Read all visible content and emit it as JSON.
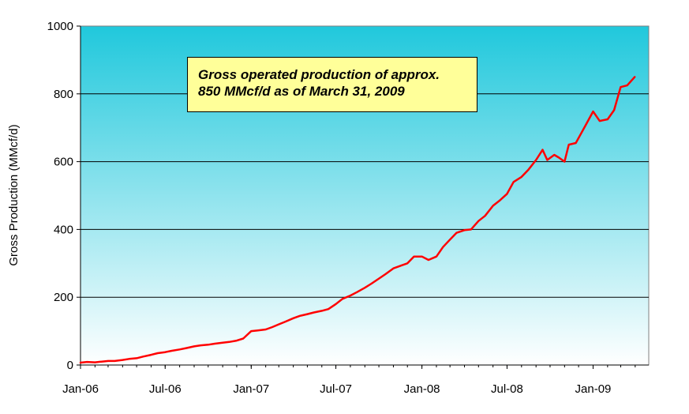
{
  "chart_data": {
    "type": "line",
    "title": "",
    "xlabel": "",
    "ylabel": "Gross Production (MMcf/d)",
    "ylim": [
      0,
      1000
    ],
    "yticks": [
      0,
      200,
      400,
      600,
      800,
      1000
    ],
    "xlim": [
      "2006-01-01",
      "2009-04-30"
    ],
    "xticks": [
      {
        "date": "2006-01-01",
        "label": "Jan-06"
      },
      {
        "date": "2006-07-01",
        "label": "Jul-06"
      },
      {
        "date": "2007-01-01",
        "label": "Jan-07"
      },
      {
        "date": "2007-07-01",
        "label": "Jul-07"
      },
      {
        "date": "2008-01-01",
        "label": "Jan-08"
      },
      {
        "date": "2008-07-01",
        "label": "Jul-08"
      },
      {
        "date": "2009-01-01",
        "label": "Jan-09"
      }
    ],
    "grid": true,
    "legend": "none",
    "background_gradient": [
      "#20c8dc",
      "#ffffff"
    ],
    "series": [
      {
        "color": "#ff0000",
        "points": [
          [
            "2006-01-01",
            7
          ],
          [
            "2006-01-15",
            9
          ],
          [
            "2006-02-01",
            8
          ],
          [
            "2006-02-15",
            10
          ],
          [
            "2006-03-01",
            12
          ],
          [
            "2006-03-15",
            12
          ],
          [
            "2006-04-01",
            15
          ],
          [
            "2006-04-15",
            18
          ],
          [
            "2006-05-01",
            20
          ],
          [
            "2006-05-15",
            25
          ],
          [
            "2006-06-01",
            30
          ],
          [
            "2006-06-15",
            35
          ],
          [
            "2006-07-01",
            38
          ],
          [
            "2006-07-15",
            42
          ],
          [
            "2006-08-01",
            46
          ],
          [
            "2006-08-15",
            50
          ],
          [
            "2006-09-01",
            55
          ],
          [
            "2006-09-15",
            58
          ],
          [
            "2006-10-01",
            60
          ],
          [
            "2006-10-15",
            63
          ],
          [
            "2006-11-01",
            66
          ],
          [
            "2006-11-15",
            68
          ],
          [
            "2006-12-01",
            72
          ],
          [
            "2006-12-15",
            78
          ],
          [
            "2007-01-01",
            100
          ],
          [
            "2007-01-15",
            102
          ],
          [
            "2007-02-01",
            105
          ],
          [
            "2007-02-15",
            112
          ],
          [
            "2007-03-01",
            120
          ],
          [
            "2007-03-15",
            128
          ],
          [
            "2007-04-01",
            138
          ],
          [
            "2007-04-15",
            145
          ],
          [
            "2007-05-01",
            150
          ],
          [
            "2007-05-15",
            155
          ],
          [
            "2007-06-01",
            160
          ],
          [
            "2007-06-15",
            165
          ],
          [
            "2007-07-01",
            180
          ],
          [
            "2007-07-15",
            195
          ],
          [
            "2007-08-01",
            205
          ],
          [
            "2007-08-15",
            215
          ],
          [
            "2007-09-01",
            228
          ],
          [
            "2007-09-15",
            240
          ],
          [
            "2007-10-01",
            255
          ],
          [
            "2007-10-15",
            268
          ],
          [
            "2007-11-01",
            285
          ],
          [
            "2007-11-15",
            292
          ],
          [
            "2007-12-01",
            300
          ],
          [
            "2007-12-15",
            320
          ],
          [
            "2008-01-01",
            320
          ],
          [
            "2008-01-15",
            310
          ],
          [
            "2008-02-01",
            320
          ],
          [
            "2008-02-15",
            348
          ],
          [
            "2008-03-01",
            370
          ],
          [
            "2008-03-15",
            390
          ],
          [
            "2008-04-01",
            398
          ],
          [
            "2008-04-15",
            400
          ],
          [
            "2008-05-01",
            425
          ],
          [
            "2008-05-15",
            440
          ],
          [
            "2008-06-01",
            470
          ],
          [
            "2008-06-15",
            485
          ],
          [
            "2008-07-01",
            505
          ],
          [
            "2008-07-15",
            540
          ],
          [
            "2008-08-01",
            555
          ],
          [
            "2008-08-15",
            575
          ],
          [
            "2008-09-01",
            605
          ],
          [
            "2008-09-15",
            635
          ],
          [
            "2008-09-25",
            605
          ],
          [
            "2008-10-10",
            620
          ],
          [
            "2008-10-20",
            612
          ],
          [
            "2008-11-01",
            600
          ],
          [
            "2008-11-10",
            650
          ],
          [
            "2008-11-25",
            655
          ],
          [
            "2008-12-05",
            680
          ],
          [
            "2008-12-15",
            705
          ],
          [
            "2009-01-01",
            748
          ],
          [
            "2009-01-15",
            720
          ],
          [
            "2009-02-01",
            725
          ],
          [
            "2009-02-15",
            752
          ],
          [
            "2009-03-01",
            820
          ],
          [
            "2009-03-15",
            825
          ],
          [
            "2009-03-31",
            850
          ]
        ]
      }
    ]
  },
  "annotation": {
    "line1": "Gross operated production of approx.",
    "line2": "850 MMcf/d as of March 31, 2009"
  }
}
